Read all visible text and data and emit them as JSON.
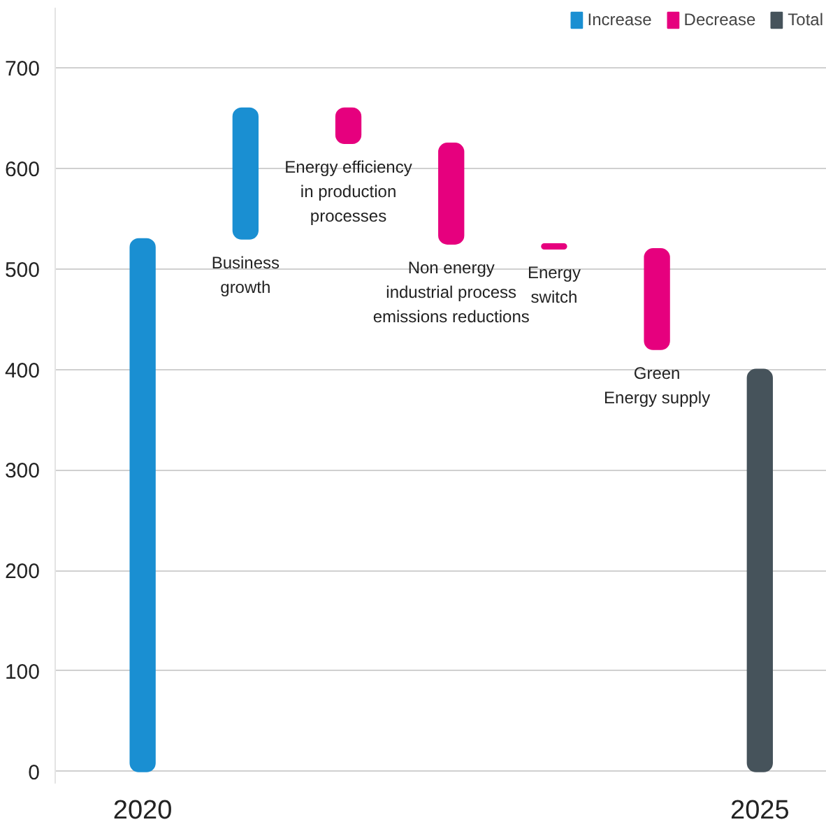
{
  "chart_data": {
    "type": "bar",
    "categories": [
      "2020",
      "Business\ngrowth",
      "Energy efficiency\nin production\nprocesses",
      "Non energy\nindustrial process\nemissions reductions",
      "Energy\nswitch",
      "Green\nEnergy supply",
      "2025"
    ],
    "series": [
      {
        "name": "Increase",
        "color": "#1a8fd2",
        "values": [
          530,
          130,
          null,
          null,
          null,
          null,
          null
        ],
        "base": [
          0,
          530,
          null,
          null,
          null,
          null,
          null
        ]
      },
      {
        "name": "Decrease",
        "color": "#e6007e",
        "values": [
          null,
          null,
          -35,
          -100,
          -5,
          -100,
          null
        ],
        "base": [
          null,
          null,
          660,
          625,
          525,
          520,
          null
        ]
      },
      {
        "name": "Total",
        "color": "#46535b",
        "values": [
          null,
          null,
          null,
          null,
          null,
          null,
          400
        ],
        "base": [
          null,
          null,
          null,
          null,
          null,
          null,
          0
        ]
      }
    ],
    "ylim": [
      -12,
      760
    ],
    "yticks": [
      0,
      100,
      200,
      300,
      400,
      500,
      600,
      700
    ],
    "grid": "y",
    "legend": "top right"
  }
}
